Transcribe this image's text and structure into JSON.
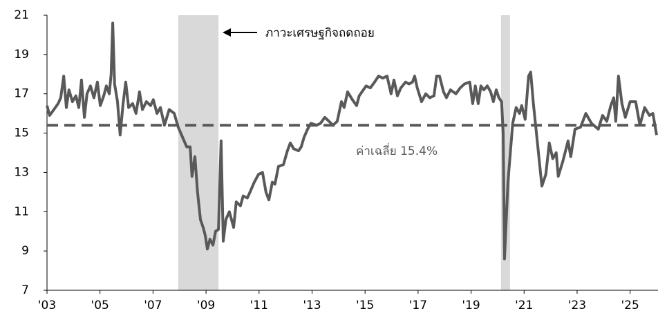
{
  "chart_data": {
    "type": "line",
    "annotation": "ภาวะเศรษฐกิจถดถอย",
    "average": {
      "value": 15.4,
      "label": "ค่าเฉลี่ย 15.4%"
    },
    "recessions": [
      [
        2007.95,
        2009.47
      ],
      [
        2020.13,
        2020.47
      ]
    ],
    "color": "#595959",
    "recession_color": "#d9d9d9",
    "xlim": [
      2003,
      2026
    ],
    "ylim": [
      7,
      21
    ],
    "xticks": [
      {
        "value": 2003,
        "label": "'03"
      },
      {
        "value": 2005,
        "label": "'05"
      },
      {
        "value": 2007,
        "label": "'07"
      },
      {
        "value": 2009,
        "label": "'09"
      },
      {
        "value": 2011,
        "label": "'11"
      },
      {
        "value": 2013,
        "label": "'13"
      },
      {
        "value": 2015,
        "label": "'15"
      },
      {
        "value": 2017,
        "label": "'17"
      },
      {
        "value": 2019,
        "label": "'19"
      },
      {
        "value": 2021,
        "label": "'21"
      },
      {
        "value": 2023,
        "label": "'23"
      },
      {
        "value": 2025,
        "label": "'25"
      }
    ],
    "yticks": [
      7,
      9,
      11,
      13,
      15,
      17,
      19,
      21
    ],
    "grid": false,
    "x": [
      2003.0,
      2003.1,
      2003.26,
      2003.42,
      2003.52,
      2003.63,
      2003.73,
      2003.83,
      2003.96,
      2004.09,
      2004.2,
      2004.3,
      2004.41,
      2004.51,
      2004.64,
      2004.77,
      2004.9,
      2005.01,
      2005.14,
      2005.24,
      2005.35,
      2005.42,
      2005.48,
      2005.55,
      2005.66,
      2005.76,
      2005.87,
      2005.97,
      2006.08,
      2006.23,
      2006.36,
      2006.49,
      2006.6,
      2006.75,
      2006.91,
      2007.01,
      2007.15,
      2007.28,
      2007.43,
      2007.61,
      2007.8,
      2007.95,
      2008.11,
      2008.27,
      2008.4,
      2008.47,
      2008.58,
      2008.68,
      2008.79,
      2008.89,
      2008.97,
      2009.05,
      2009.15,
      2009.26,
      2009.36,
      2009.47,
      2009.57,
      2009.65,
      2009.75,
      2009.88,
      2010.04,
      2010.14,
      2010.3,
      2010.4,
      2010.56,
      2010.66,
      2010.82,
      2010.98,
      2011.13,
      2011.26,
      2011.37,
      2011.5,
      2011.6,
      2011.73,
      2011.92,
      2012.07,
      2012.18,
      2012.31,
      2012.49,
      2012.59,
      2012.7,
      2012.83,
      2012.96,
      2013.17,
      2013.32,
      2013.48,
      2013.64,
      2013.79,
      2013.95,
      2014.11,
      2014.21,
      2014.34,
      2014.52,
      2014.68,
      2014.78,
      2015.04,
      2015.2,
      2015.36,
      2015.51,
      2015.67,
      2015.83,
      2015.98,
      2016.09,
      2016.22,
      2016.35,
      2016.53,
      2016.66,
      2016.79,
      2016.87,
      2016.97,
      2017.13,
      2017.29,
      2017.44,
      2017.6,
      2017.7,
      2017.81,
      2017.96,
      2018.07,
      2018.22,
      2018.43,
      2018.59,
      2018.75,
      2018.95,
      2019.06,
      2019.16,
      2019.27,
      2019.37,
      2019.48,
      2019.61,
      2019.74,
      2019.84,
      2019.95,
      2020.05,
      2020.15,
      2020.21,
      2020.26,
      2020.39,
      2020.57,
      2020.7,
      2020.83,
      2020.91,
      2021.04,
      2021.17,
      2021.25,
      2021.35,
      2021.48,
      2021.67,
      2021.82,
      2021.95,
      2022.08,
      2022.21,
      2022.29,
      2022.47,
      2022.66,
      2022.76,
      2022.92,
      2023.13,
      2023.33,
      2023.54,
      2023.8,
      2023.96,
      2024.12,
      2024.27,
      2024.38,
      2024.46,
      2024.56,
      2024.69,
      2024.82,
      2025.0,
      2025.21,
      2025.37,
      2025.55,
      2025.73,
      2025.86,
      2026.0
    ],
    "values": [
      16.4,
      15.9,
      16.2,
      16.5,
      16.8,
      17.9,
      16.3,
      17.2,
      16.6,
      16.9,
      16.3,
      17.7,
      15.8,
      17.0,
      17.4,
      16.8,
      17.6,
      16.4,
      16.9,
      17.4,
      17.0,
      18.0,
      20.6,
      17.5,
      16.6,
      14.9,
      16.5,
      17.6,
      16.3,
      16.5,
      16.0,
      17.1,
      16.2,
      16.6,
      16.4,
      16.7,
      16.0,
      16.3,
      15.4,
      16.2,
      16.0,
      15.3,
      14.8,
      14.3,
      14.3,
      12.8,
      13.8,
      12.0,
      10.6,
      10.2,
      9.8,
      9.1,
      9.6,
      9.3,
      10.0,
      10.1,
      14.6,
      9.5,
      10.6,
      11.0,
      10.2,
      11.5,
      11.3,
      11.8,
      11.7,
      12.0,
      12.5,
      12.9,
      13.0,
      12.0,
      11.6,
      12.5,
      12.4,
      13.3,
      13.4,
      14.1,
      14.5,
      14.2,
      14.1,
      14.3,
      14.8,
      15.2,
      15.5,
      15.4,
      15.5,
      15.8,
      15.6,
      15.4,
      15.6,
      16.6,
      16.3,
      17.1,
      16.7,
      16.4,
      16.9,
      17.4,
      17.3,
      17.6,
      17.9,
      17.8,
      17.9,
      17.0,
      17.7,
      16.9,
      17.3,
      17.6,
      17.5,
      17.6,
      17.9,
      17.3,
      16.6,
      17.0,
      16.8,
      16.9,
      17.9,
      17.9,
      17.1,
      16.8,
      17.2,
      17.0,
      17.3,
      17.5,
      17.6,
      16.5,
      17.4,
      16.5,
      17.4,
      17.2,
      17.4,
      17.1,
      16.6,
      17.2,
      16.8,
      16.6,
      15.0,
      8.6,
      12.5,
      15.5,
      16.3,
      16.0,
      16.4,
      15.7,
      17.9,
      18.1,
      16.5,
      14.8,
      12.3,
      12.9,
      14.5,
      13.7,
      14.0,
      12.8,
      13.6,
      14.6,
      13.8,
      15.2,
      15.3,
      16.0,
      15.5,
      15.2,
      15.9,
      15.6,
      16.4,
      16.8,
      15.6,
      17.9,
      16.5,
      15.8,
      16.6,
      16.6,
      15.4,
      16.3,
      15.9,
      16.0,
      14.9
    ]
  }
}
